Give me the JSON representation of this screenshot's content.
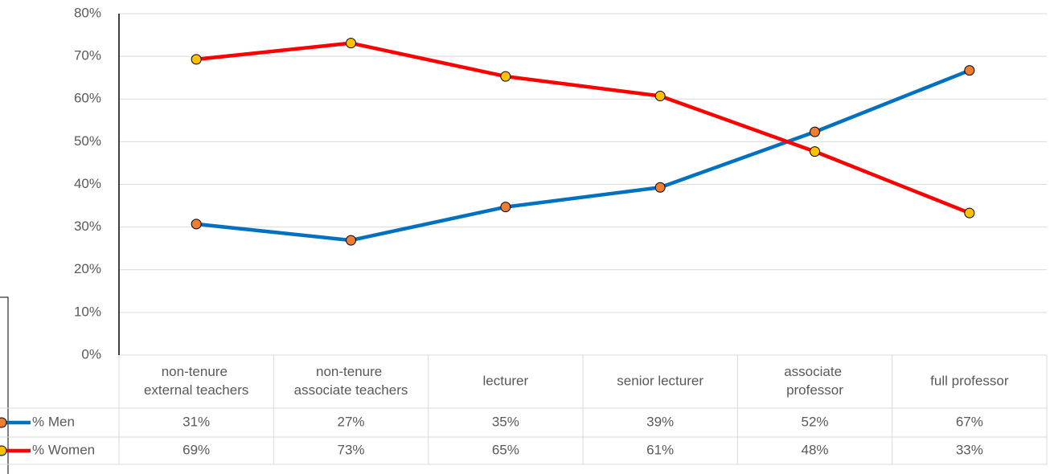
{
  "chart_data": {
    "type": "line",
    "categories": [
      "non-tenure external teachers",
      "non-tenure associate teachers",
      "lecturer",
      "senior lecturer",
      "associate professor",
      "full professor"
    ],
    "series": [
      {
        "name": "% Men",
        "color": "#0070c0",
        "marker_color": "#ed7d31",
        "values": [
          30.7,
          26.9,
          34.7,
          39.3,
          52.3,
          66.7
        ],
        "value_labels": [
          "31%",
          "27%",
          "35%",
          "39%",
          "52%",
          "67%"
        ]
      },
      {
        "name": "% Women",
        "color": "#ff0000",
        "marker_color": "#ffc000",
        "values": [
          69.3,
          73.1,
          65.3,
          60.7,
          47.7,
          33.3
        ],
        "value_labels": [
          "69%",
          "73%",
          "65%",
          "61%",
          "48%",
          "33%"
        ]
      }
    ],
    "ylim": [
      0,
      80
    ],
    "yticks": [
      {
        "value": 0,
        "label": "0%"
      },
      {
        "value": 10,
        "label": "10%"
      },
      {
        "value": 20,
        "label": "20%"
      },
      {
        "value": 30,
        "label": "30%"
      },
      {
        "value": 40,
        "label": "40%"
      },
      {
        "value": 50,
        "label": "50%"
      },
      {
        "value": 60,
        "label": "60%"
      },
      {
        "value": 70,
        "label": "70%"
      },
      {
        "value": 80,
        "label": "80%"
      }
    ],
    "grid": true
  }
}
